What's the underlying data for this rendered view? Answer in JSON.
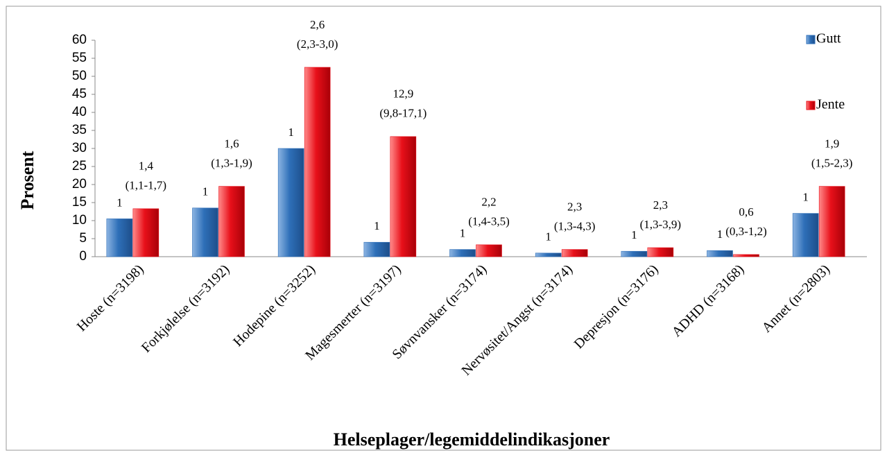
{
  "chart_data": {
    "type": "bar",
    "y_axis_label": "Prosent",
    "x_axis_label": "Helseplager/legemiddelindikasjoner",
    "categories": [
      "Hoste (n=3198)",
      "Forkjølelse (n=3192)",
      "Hodepine (n=3252)",
      "Magesmerter (n=3197)",
      "Søvnvansker (n=3174)",
      "Nervøsitet/Angst (n=3174)",
      "Depresjon (n=3176)",
      "ADHD (n=3168)",
      "Annet (n=2803)"
    ],
    "series": [
      {
        "name": "Gutt",
        "color": "#2e6fb8",
        "values": [
          10.5,
          13.5,
          30,
          4,
          2,
          1,
          1.5,
          1.7,
          12
        ],
        "odds_ratios": [
          "1",
          "1",
          "1",
          "1",
          "1",
          "1",
          "1",
          "1",
          "1"
        ]
      },
      {
        "name": "Jente",
        "color": "#e8101a",
        "values": [
          13.3,
          19.5,
          52.5,
          33.3,
          3.3,
          2,
          2.5,
          0.6,
          19.5
        ],
        "odds_ratios": [
          "1,4",
          "1,6",
          "2,6",
          "12,9",
          "2,2",
          "2,3",
          "2,3",
          "0,6",
          "1,9"
        ],
        "confidence_intervals": [
          "(1,1-1,7)",
          "(1,3-1,9)",
          "(2,3-3,0)",
          "(9,8-17,1)",
          "(1,4-3,5)",
          "(1,3-4,3)",
          "(1,3-3,9)",
          "(0,3-1,2)",
          "(1,5-2,3)"
        ]
      }
    ],
    "ylim": [
      0,
      60
    ],
    "yticks": [
      0,
      5,
      10,
      15,
      20,
      25,
      30,
      35,
      40,
      45,
      50,
      55,
      60
    ],
    "grid": false,
    "legend": "top-right"
  }
}
